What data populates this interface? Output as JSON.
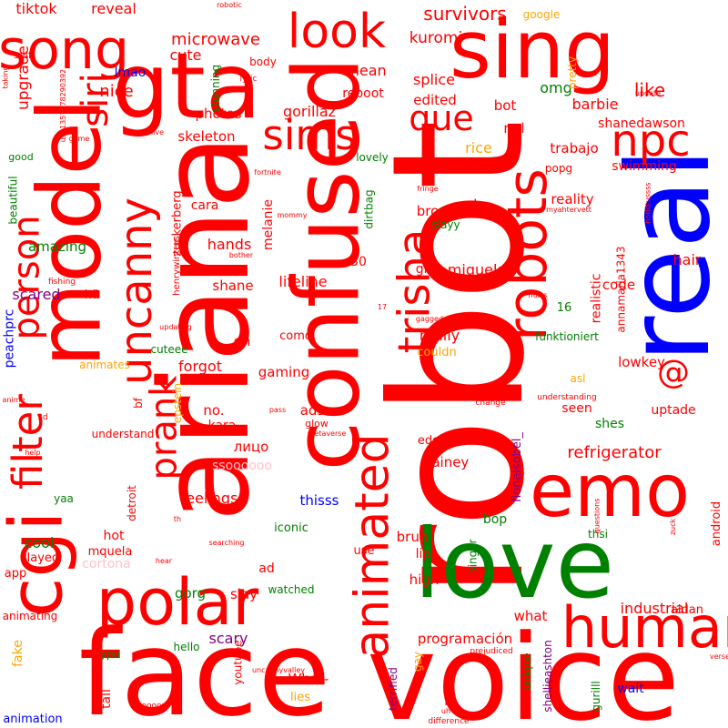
{
  "palette": {
    "red": "#ff0000",
    "green": "#008000",
    "blue": "#0000ff",
    "purple": "#800080",
    "orange": "#ffa500",
    "pink": "#ffc0cb"
  },
  "words": [
    {
      "text": "robot",
      "color": "red"
    },
    {
      "text": "face",
      "color": "red"
    },
    {
      "text": "voice",
      "color": "red"
    },
    {
      "text": "real",
      "color": "blue"
    },
    {
      "text": "ariana",
      "color": "red"
    },
    {
      "text": "love",
      "color": "green"
    },
    {
      "text": "confused",
      "color": "red"
    },
    {
      "text": "model",
      "color": "red"
    },
    {
      "text": "sing",
      "color": "red"
    },
    {
      "text": "gta",
      "color": "red"
    },
    {
      "text": "emo",
      "color": "red"
    },
    {
      "text": "cgi",
      "color": "red"
    },
    {
      "text": "polar",
      "color": "red"
    },
    {
      "text": "human",
      "color": "red"
    },
    {
      "text": "robots",
      "color": "red"
    },
    {
      "text": "animated",
      "color": "red"
    },
    {
      "text": "trisha",
      "color": "red"
    },
    {
      "text": "uncanny",
      "color": "red"
    },
    {
      "text": "song",
      "color": "red"
    },
    {
      "text": "look",
      "color": "red"
    },
    {
      "text": "filter",
      "color": "red"
    },
    {
      "text": "person",
      "color": "red"
    },
    {
      "text": "siri",
      "color": "red"
    },
    {
      "text": "npc",
      "color": "red"
    },
    {
      "text": "sims",
      "color": "red"
    },
    {
      "text": "que",
      "color": "red"
    },
    {
      "text": "prank",
      "color": "red"
    },
    {
      "text": "@",
      "color": "red"
    },
    {
      "text": "tiktok",
      "color": "red"
    },
    {
      "text": "reveal",
      "color": "red"
    },
    {
      "text": "robotic",
      "color": "red"
    },
    {
      "text": "google",
      "color": "orange"
    },
    {
      "text": "like",
      "color": "red"
    },
    {
      "text": "survivors",
      "color": "red"
    },
    {
      "text": "microwave",
      "color": "red"
    },
    {
      "text": "kuromi",
      "color": "red"
    },
    {
      "text": "cute",
      "color": "red"
    },
    {
      "text": "mean",
      "color": "red"
    },
    {
      "text": "splice",
      "color": "red"
    },
    {
      "text": "edited",
      "color": "red"
    },
    {
      "text": "reboot",
      "color": "red"
    },
    {
      "text": "upgrade",
      "color": "red"
    },
    {
      "text": "nice",
      "color": "red"
    },
    {
      "text": "lmao",
      "color": "blue"
    },
    {
      "text": "body",
      "color": "red"
    },
    {
      "text": "self",
      "color": "red"
    },
    {
      "text": "omg",
      "color": "green"
    },
    {
      "text": "barbie",
      "color": "red"
    },
    {
      "text": "pretty",
      "color": "orange"
    },
    {
      "text": "bot",
      "color": "red"
    },
    {
      "text": "ngl",
      "color": "red"
    },
    {
      "text": "photos",
      "color": "red"
    },
    {
      "text": "gorillaz",
      "color": "red"
    },
    {
      "text": "skeleton",
      "color": "red"
    },
    {
      "text": "shanedawson",
      "color": "red"
    },
    {
      "text": "rice",
      "color": "orange"
    },
    {
      "text": "trabajo",
      "color": "red"
    },
    {
      "text": "popg",
      "color": "red"
    },
    {
      "text": "swimming",
      "color": "red"
    },
    {
      "text": "lovely",
      "color": "green"
    },
    {
      "text": "good",
      "color": "green"
    },
    {
      "text": "stunning",
      "color": "green"
    },
    {
      "text": "lyric",
      "color": "red"
    },
    {
      "text": "beautiful",
      "color": "green"
    },
    {
      "text": "melanie",
      "color": "red"
    },
    {
      "text": "zuckerberg",
      "color": "red"
    },
    {
      "text": "cara",
      "color": "red"
    },
    {
      "text": "bro",
      "color": "red"
    },
    {
      "text": "ok",
      "color": "red"
    },
    {
      "text": "reality",
      "color": "red"
    },
    {
      "text": "slayy",
      "color": "green"
    },
    {
      "text": "dirtbag",
      "color": "green"
    },
    {
      "text": "amazing",
      "color": "green"
    },
    {
      "text": "hands",
      "color": "red"
    },
    {
      "text": "miquela",
      "color": "red"
    },
    {
      "text": "realistic",
      "color": "red"
    },
    {
      "text": "annamaria1343",
      "color": "red"
    },
    {
      "text": "hair",
      "color": "red"
    },
    {
      "text": "code",
      "color": "red"
    },
    {
      "text": "30",
      "color": "red"
    },
    {
      "text": "girl",
      "color": "red"
    },
    {
      "text": "scared",
      "color": "purple"
    },
    {
      "text": "hä",
      "color": "red"
    },
    {
      "text": "lifeline",
      "color": "red"
    },
    {
      "text": "shane",
      "color": "red"
    },
    {
      "text": "16",
      "color": "green"
    },
    {
      "text": "oh",
      "color": "red"
    },
    {
      "text": "como",
      "color": "red"
    },
    {
      "text": "really",
      "color": "red"
    },
    {
      "text": "couldn",
      "color": "orange"
    },
    {
      "text": "funktioniert",
      "color": "green"
    },
    {
      "text": "peachprc",
      "color": "blue"
    },
    {
      "text": "cuteee",
      "color": "green"
    },
    {
      "text": "animates",
      "color": "orange"
    },
    {
      "text": "forgot",
      "color": "red"
    },
    {
      "text": "gaming",
      "color": "red"
    },
    {
      "text": "calls",
      "color": "red"
    },
    {
      "text": "lowkey",
      "color": "red"
    },
    {
      "text": "asl",
      "color": "orange"
    },
    {
      "text": "freaks",
      "color": "red"
    },
    {
      "text": "bf",
      "color": "red"
    },
    {
      "text": "epstein",
      "color": "orange"
    },
    {
      "text": "no.",
      "color": "red"
    },
    {
      "text": "ads",
      "color": "red"
    },
    {
      "text": "seen",
      "color": "red"
    },
    {
      "text": "shes",
      "color": "green"
    },
    {
      "text": "uptade",
      "color": "red"
    },
    {
      "text": "understand",
      "color": "red"
    },
    {
      "text": "kara",
      "color": "red"
    },
    {
      "text": "лицо",
      "color": "red"
    },
    {
      "text": "glow",
      "color": "red"
    },
    {
      "text": "edgy",
      "color": "red"
    },
    {
      "text": "_lainey",
      "color": "red"
    },
    {
      "text": "refrigerator",
      "color": "red"
    },
    {
      "text": "ssoooooo",
      "color": "pink"
    },
    {
      "text": "fionaisobel_",
      "color": "purple"
    },
    {
      "text": "detroit",
      "color": "red"
    },
    {
      "text": "feelings",
      "color": "red"
    },
    {
      "text": "thisss",
      "color": "blue"
    },
    {
      "text": "bop",
      "color": "green"
    },
    {
      "text": "yaa",
      "color": "green"
    },
    {
      "text": "cool",
      "color": "green"
    },
    {
      "text": "hot",
      "color": "red"
    },
    {
      "text": "iconic",
      "color": "green"
    },
    {
      "text": "bruh",
      "color": "red"
    },
    {
      "text": "thsi",
      "color": "green"
    },
    {
      "text": "android",
      "color": "red"
    },
    {
      "text": "slayed",
      "color": "red"
    },
    {
      "text": "mquela",
      "color": "red"
    },
    {
      "text": "cortona",
      "color": "pink"
    },
    {
      "text": "use",
      "color": "red"
    },
    {
      "text": "lip",
      "color": "red"
    },
    {
      "text": "singer",
      "color": "green"
    },
    {
      "text": "app",
      "color": "red"
    },
    {
      "text": "ad",
      "color": "red"
    },
    {
      "text": "high",
      "color": "red"
    },
    {
      "text": "industrial",
      "color": "red"
    },
    {
      "text": "aidan",
      "color": "red"
    },
    {
      "text": "watched",
      "color": "green"
    },
    {
      "text": "gorg",
      "color": "green"
    },
    {
      "text": "slay",
      "color": "red"
    },
    {
      "text": "scary",
      "color": "purple"
    },
    {
      "text": "what",
      "color": "red"
    },
    {
      "text": "programación",
      "color": "red"
    },
    {
      "text": "animating",
      "color": "red"
    },
    {
      "text": "ypu",
      "color": "green"
    },
    {
      "text": "hello",
      "color": "green"
    },
    {
      "text": "youtube",
      "color": "red"
    },
    {
      "text": "fake",
      "color": "orange"
    },
    {
      "text": "tall",
      "color": "red"
    },
    {
      "text": "What-",
      "color": "red"
    },
    {
      "text": "lies",
      "color": "orange"
    },
    {
      "text": "terrified",
      "color": "purple"
    },
    {
      "text": "gay",
      "color": "orange"
    },
    {
      "text": "hi",
      "color": "red"
    },
    {
      "text": "unique",
      "color": "green"
    },
    {
      "text": "shellieashton",
      "color": "purple"
    },
    {
      "text": "gurilll",
      "color": "green"
    },
    {
      "text": "wait",
      "color": "blue"
    },
    {
      "text": "animation",
      "color": "blue"
    },
    {
      "text": "soooon",
      "color": "red"
    },
    {
      "text": "uh",
      "color": "red"
    },
    {
      "text": "difference",
      "color": "red"
    },
    {
      "text": "uncannyvalley",
      "color": "red"
    },
    {
      "text": "prejudiced",
      "color": "red"
    },
    {
      "text": "taking",
      "color": "red"
    },
    {
      "text": "usu1357478290392",
      "color": "red"
    },
    {
      "text": "game",
      "color": "red"
    },
    {
      "text": "live",
      "color": "red"
    },
    {
      "text": "fortnite",
      "color": "red"
    },
    {
      "text": "fringe",
      "color": "red"
    },
    {
      "text": "myahtervett",
      "color": "red"
    },
    {
      "text": "notlotussss",
      "color": "red"
    },
    {
      "text": "update",
      "color": "red"
    },
    {
      "text": "load",
      "color": "red"
    },
    {
      "text": "mommy",
      "color": "red"
    },
    {
      "text": "bother",
      "color": "red"
    },
    {
      "text": "henrywinters",
      "color": "red"
    },
    {
      "text": "fishing",
      "color": "red"
    },
    {
      "text": "17",
      "color": "red"
    },
    {
      "text": "gagged",
      "color": "red"
    },
    {
      "text": "updating",
      "color": "red"
    },
    {
      "text": "hurts",
      "color": "red"
    },
    {
      "text": "understanding",
      "color": "red"
    },
    {
      "text": "change",
      "color": "red"
    },
    {
      "text": "pass",
      "color": "red"
    },
    {
      "text": "metaverse",
      "color": "red"
    },
    {
      "text": "anime",
      "color": "red"
    },
    {
      "text": "3d",
      "color": "red"
    },
    {
      "text": "help",
      "color": "red"
    },
    {
      "text": "th",
      "color": "red"
    },
    {
      "text": "hear",
      "color": "red"
    },
    {
      "text": "searching",
      "color": "red"
    },
    {
      "text": "zuck",
      "color": "red"
    },
    {
      "text": "questions",
      "color": "red"
    },
    {
      "text": "verse",
      "color": "red"
    }
  ]
}
